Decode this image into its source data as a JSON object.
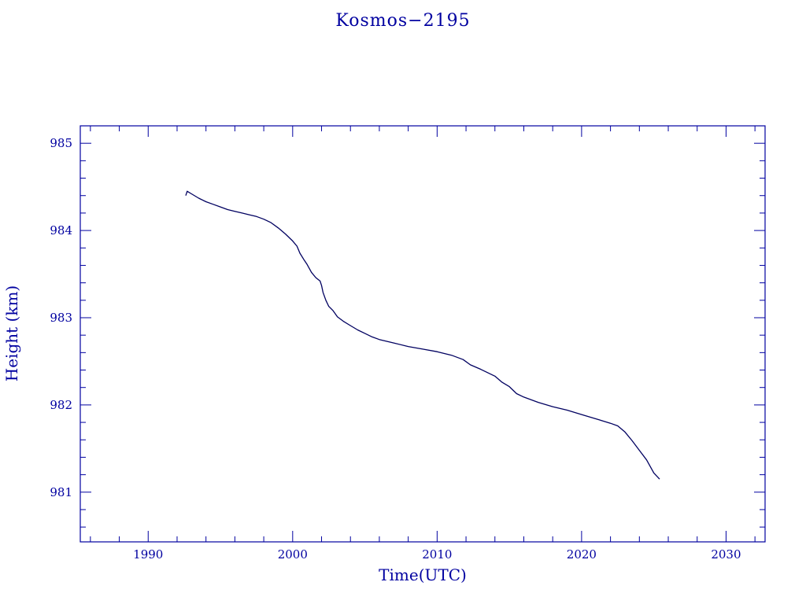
{
  "chart_data": {
    "type": "line",
    "title": "Kosmos−2195",
    "xlabel": "Time(UTC)",
    "ylabel": "Height (km)",
    "xlim": [
      1985.3,
      2032.7
    ],
    "ylim": [
      980.43,
      985.2
    ],
    "x_ticks": [
      1990,
      2000,
      2010,
      2020,
      2030
    ],
    "x_tick_labels": [
      "1990",
      "2000",
      "2010",
      "2020",
      "2030"
    ],
    "y_ticks": [
      981,
      982,
      983,
      984,
      985
    ],
    "y_tick_labels": [
      "981",
      "982",
      "983",
      "984",
      "985"
    ],
    "colors": {
      "axis": "#0000a0",
      "line": "#000060"
    },
    "grid": false,
    "series": [
      {
        "points": [
          [
            1992.6,
            984.4
          ],
          [
            1992.7,
            984.45
          ],
          [
            1993.0,
            984.42
          ],
          [
            1993.5,
            984.37
          ],
          [
            1994.0,
            984.33
          ],
          [
            1994.5,
            984.3
          ],
          [
            1995.0,
            984.27
          ],
          [
            1995.5,
            984.24
          ],
          [
            1996.0,
            984.22
          ],
          [
            1996.5,
            984.2
          ],
          [
            1997.0,
            984.18
          ],
          [
            1997.5,
            984.16
          ],
          [
            1998.0,
            984.13
          ],
          [
            1998.5,
            984.09
          ],
          [
            1999.0,
            984.03
          ],
          [
            1999.5,
            983.96
          ],
          [
            2000.0,
            983.88
          ],
          [
            2000.3,
            983.82
          ],
          [
            2000.5,
            983.74
          ],
          [
            2000.8,
            983.66
          ],
          [
            2001.0,
            983.61
          ],
          [
            2001.3,
            983.52
          ],
          [
            2001.6,
            983.46
          ],
          [
            2001.9,
            983.42
          ],
          [
            2002.0,
            983.37
          ],
          [
            2002.1,
            983.29
          ],
          [
            2002.3,
            983.2
          ],
          [
            2002.5,
            983.13
          ],
          [
            2002.8,
            983.08
          ],
          [
            2003.1,
            983.01
          ],
          [
            2003.5,
            982.96
          ],
          [
            2004.0,
            982.91
          ],
          [
            2004.5,
            982.86
          ],
          [
            2005.0,
            982.82
          ],
          [
            2005.5,
            982.78
          ],
          [
            2006.0,
            982.75
          ],
          [
            2007.0,
            982.71
          ],
          [
            2008.0,
            982.67
          ],
          [
            2009.0,
            982.64
          ],
          [
            2010.0,
            982.61
          ],
          [
            2011.0,
            982.57
          ],
          [
            2011.8,
            982.52
          ],
          [
            2012.3,
            982.46
          ],
          [
            2013.0,
            982.41
          ],
          [
            2014.0,
            982.33
          ],
          [
            2014.5,
            982.26
          ],
          [
            2015.0,
            982.21
          ],
          [
            2015.5,
            982.13
          ],
          [
            2016.0,
            982.09
          ],
          [
            2017.0,
            982.03
          ],
          [
            2018.0,
            981.98
          ],
          [
            2019.0,
            981.94
          ],
          [
            2020.0,
            981.89
          ],
          [
            2021.0,
            981.84
          ],
          [
            2022.0,
            981.79
          ],
          [
            2022.5,
            981.76
          ],
          [
            2023.0,
            981.69
          ],
          [
            2023.5,
            981.59
          ],
          [
            2024.0,
            981.48
          ],
          [
            2024.5,
            981.37
          ],
          [
            2025.0,
            981.22
          ],
          [
            2025.4,
            981.15
          ]
        ]
      }
    ]
  }
}
